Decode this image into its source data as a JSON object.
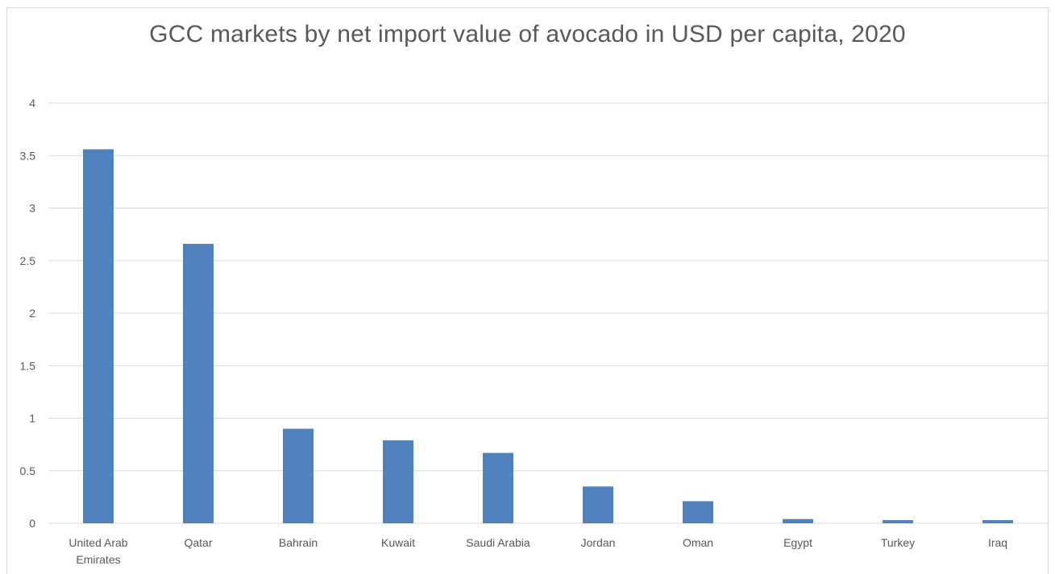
{
  "chart_data": {
    "type": "bar",
    "title": "GCC markets by net import value of avocado in USD per capita, 2020",
    "xlabel": "",
    "ylabel": "",
    "categories": [
      [
        "United Arab",
        "Emirates"
      ],
      [
        "Qatar"
      ],
      [
        "Bahrain"
      ],
      [
        "Kuwait"
      ],
      [
        "Saudi Arabia"
      ],
      [
        "Jordan"
      ],
      [
        "Oman"
      ],
      [
        "Egypt"
      ],
      [
        "Turkey"
      ],
      [
        "Iraq"
      ]
    ],
    "values": [
      3.56,
      2.66,
      0.9,
      0.79,
      0.67,
      0.35,
      0.21,
      0.04,
      0.03,
      0.03
    ],
    "ylim": [
      0,
      4
    ],
    "yticks": [
      "0",
      "0.5",
      "1",
      "1.5",
      "2",
      "2.5",
      "3",
      "3.5",
      "4"
    ],
    "grid": true,
    "bar_color": "#4f81bd",
    "grid_color": "#d9d9d9",
    "text_color": "#595959"
  }
}
